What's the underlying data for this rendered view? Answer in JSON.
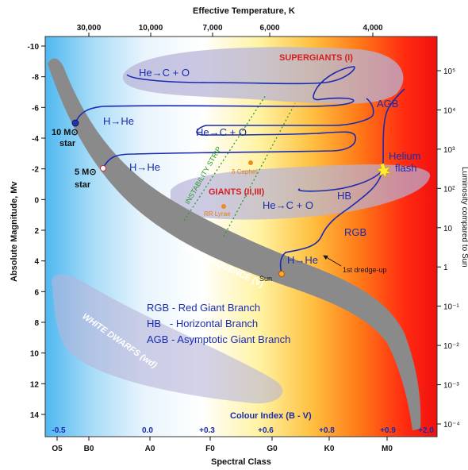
{
  "chart_data": {
    "type": "scatter",
    "title": "",
    "top_axis": {
      "label": "Effective Temperature, K",
      "ticks": [
        "30,000",
        "10,000",
        "7,000",
        "6,000",
        "4,000"
      ]
    },
    "bottom_axis": {
      "label": "Spectral Class",
      "ticks": [
        "O5",
        "B0",
        "A0",
        "F0",
        "G0",
        "K0",
        "M0"
      ]
    },
    "left_axis": {
      "label": "Absolute Magnitude, Mv",
      "ylim": [
        15,
        -10
      ],
      "ticks": [
        "-10",
        "-8",
        "-6",
        "-4",
        "-2",
        "0",
        "2",
        "4",
        "6",
        "8",
        "10",
        "12",
        "14"
      ]
    },
    "right_axis": {
      "label": "Luminosity compared to Sun",
      "ticks": [
        "10⁵",
        "10⁴",
        "10³",
        "10²",
        "10",
        "1",
        "10⁻¹",
        "10⁻²",
        "10⁻³",
        "10⁻⁴"
      ]
    },
    "colour_index": {
      "label": "Colour Index (B - V)",
      "ticks": [
        "-0.5",
        "0.0",
        "+0.3",
        "+0.6",
        "+0.8",
        "+0.9",
        "+2.0"
      ]
    },
    "regions": {
      "supergiants": "SUPERGIANTS (I)",
      "giants": "GIANTS (II,III)",
      "main_sequence": "MAIN SEQUENCE (V)",
      "white_dwarfs": "WHITE DWARFS (wd)",
      "instability_strip": "INSTABILITY STRIP",
      "cepheid": "δ Cephei",
      "rr_lyrae": "RR Lyrae"
    },
    "track_labels": {
      "h_he_10": "H→He",
      "h_he_5": "H→He",
      "h_he_sun": "H→He",
      "he_c_o_top": "He→C + O",
      "he_c_o_mid": "He→C + O",
      "he_c_o_giant": "He→C + O",
      "agb": "AGB",
      "hb": "HB",
      "rgb": "RGB",
      "helium_flash": "Helium flash",
      "dredge_up": "1st dredge-up"
    },
    "stars": {
      "ten_mass": "10 M⊙ star",
      "five_mass": "5 M⊙ star",
      "sun": "Sun"
    },
    "legend": [
      "RGB - Red Giant Branch",
      "HB   - Horizontal Branch",
      "AGB - Asymptotic Giant Branch"
    ],
    "colors": {
      "track": "#1a2bb0",
      "main_sequence": "#8a8a8a",
      "regions": "#b8b4d8",
      "labels_red": "#d42020"
    }
  }
}
